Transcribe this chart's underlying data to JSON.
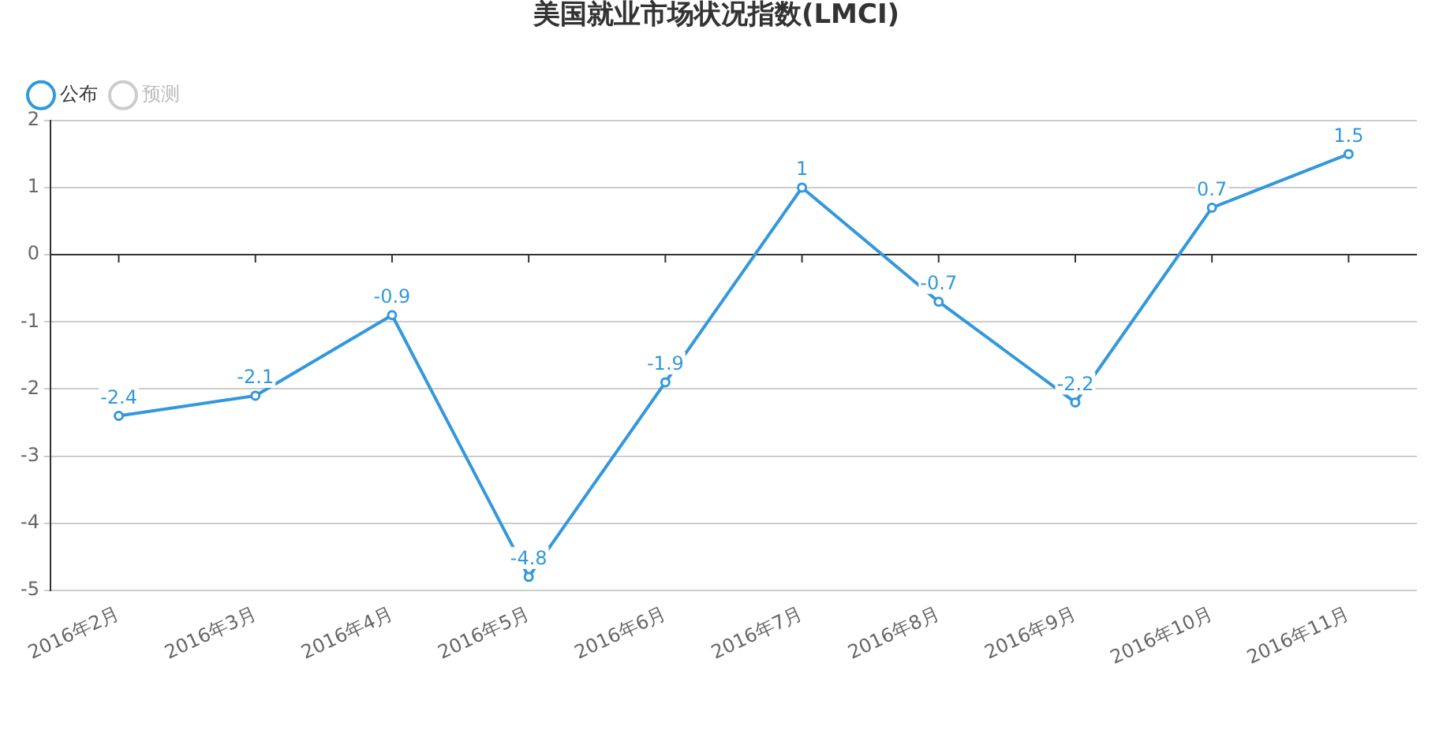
{
  "chart_data": {
    "type": "line",
    "title": "美国就业市场状况指数(LMCI)",
    "categories": [
      "2016年2月",
      "2016年3月",
      "2016年4月",
      "2016年5月",
      "2016年6月",
      "2016年7月",
      "2016年8月",
      "2016年9月",
      "2016年10月",
      "2016年11月"
    ],
    "series": [
      {
        "name": "公布",
        "color": "#3398db",
        "values": [
          -2.4,
          -2.1,
          -0.9,
          -4.8,
          -1.9,
          1,
          -0.7,
          -2.2,
          0.7,
          1.5
        ]
      },
      {
        "name": "预测",
        "color": "#cccccc",
        "values": [
          null,
          null,
          null,
          null,
          null,
          null,
          null,
          null,
          null,
          null
        ]
      }
    ],
    "ylim": [
      -5,
      2
    ],
    "yticks": [
      -5,
      -4,
      -3,
      -2,
      -1,
      0,
      1,
      2
    ],
    "grid": "y",
    "legend": "top left",
    "marker": "circle",
    "line_style": "solid",
    "data_labels": true
  }
}
